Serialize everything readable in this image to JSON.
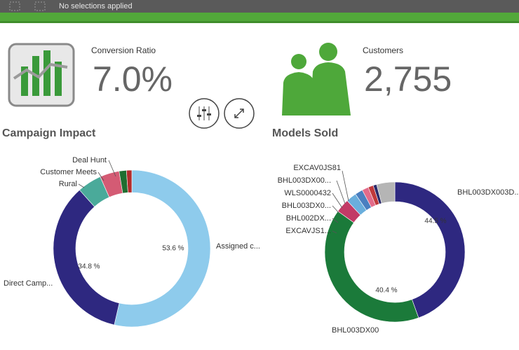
{
  "toolbar": {
    "selection_text": "No selections applied"
  },
  "kpis": [
    {
      "label": "Conversion Ratio",
      "value": "7.0%"
    },
    {
      "label": "Customers",
      "value": "2,755"
    }
  ],
  "chart_data": [
    {
      "type": "donut",
      "title": "Campaign Impact",
      "categories": [
        "Assigned c...",
        "Direct Camp...",
        "Rural",
        "Customer Meets",
        "Deal Hunt",
        null
      ],
      "values": [
        53.6,
        34.8,
        5,
        4,
        1.5,
        1.1
      ],
      "value_labels": [
        "53.6 %",
        "34.8 %",
        null,
        null,
        null,
        null
      ],
      "colors": [
        "#8ecbec",
        "#2e2880",
        "#4aaa9a",
        "#d45b74",
        "#1f6e30",
        "#b22c2c"
      ]
    },
    {
      "type": "donut",
      "title": "Models Sold",
      "categories": [
        "BHL003DX003D...",
        "BHL003DX00",
        "EXCAVJS1...",
        "BHL002DX...",
        "BHL003DX0...",
        "WLS0000432",
        "BHL003DX00...",
        "EXCAV0JS81",
        null
      ],
      "values": [
        44.5,
        40.4,
        3.2,
        2.4,
        1.8,
        1.5,
        1.2,
        0.8,
        4.2
      ],
      "value_labels": [
        "44.5 %",
        "40.4 %",
        null,
        null,
        null,
        null,
        null,
        null,
        null
      ],
      "colors": [
        "#2e2880",
        "#1b7a3a",
        "#c23a66",
        "#6aaedc",
        "#4a7fc0",
        "#e26b8a",
        "#c0393b",
        "#2a2a6a",
        "#b5b5b5"
      ]
    }
  ]
}
